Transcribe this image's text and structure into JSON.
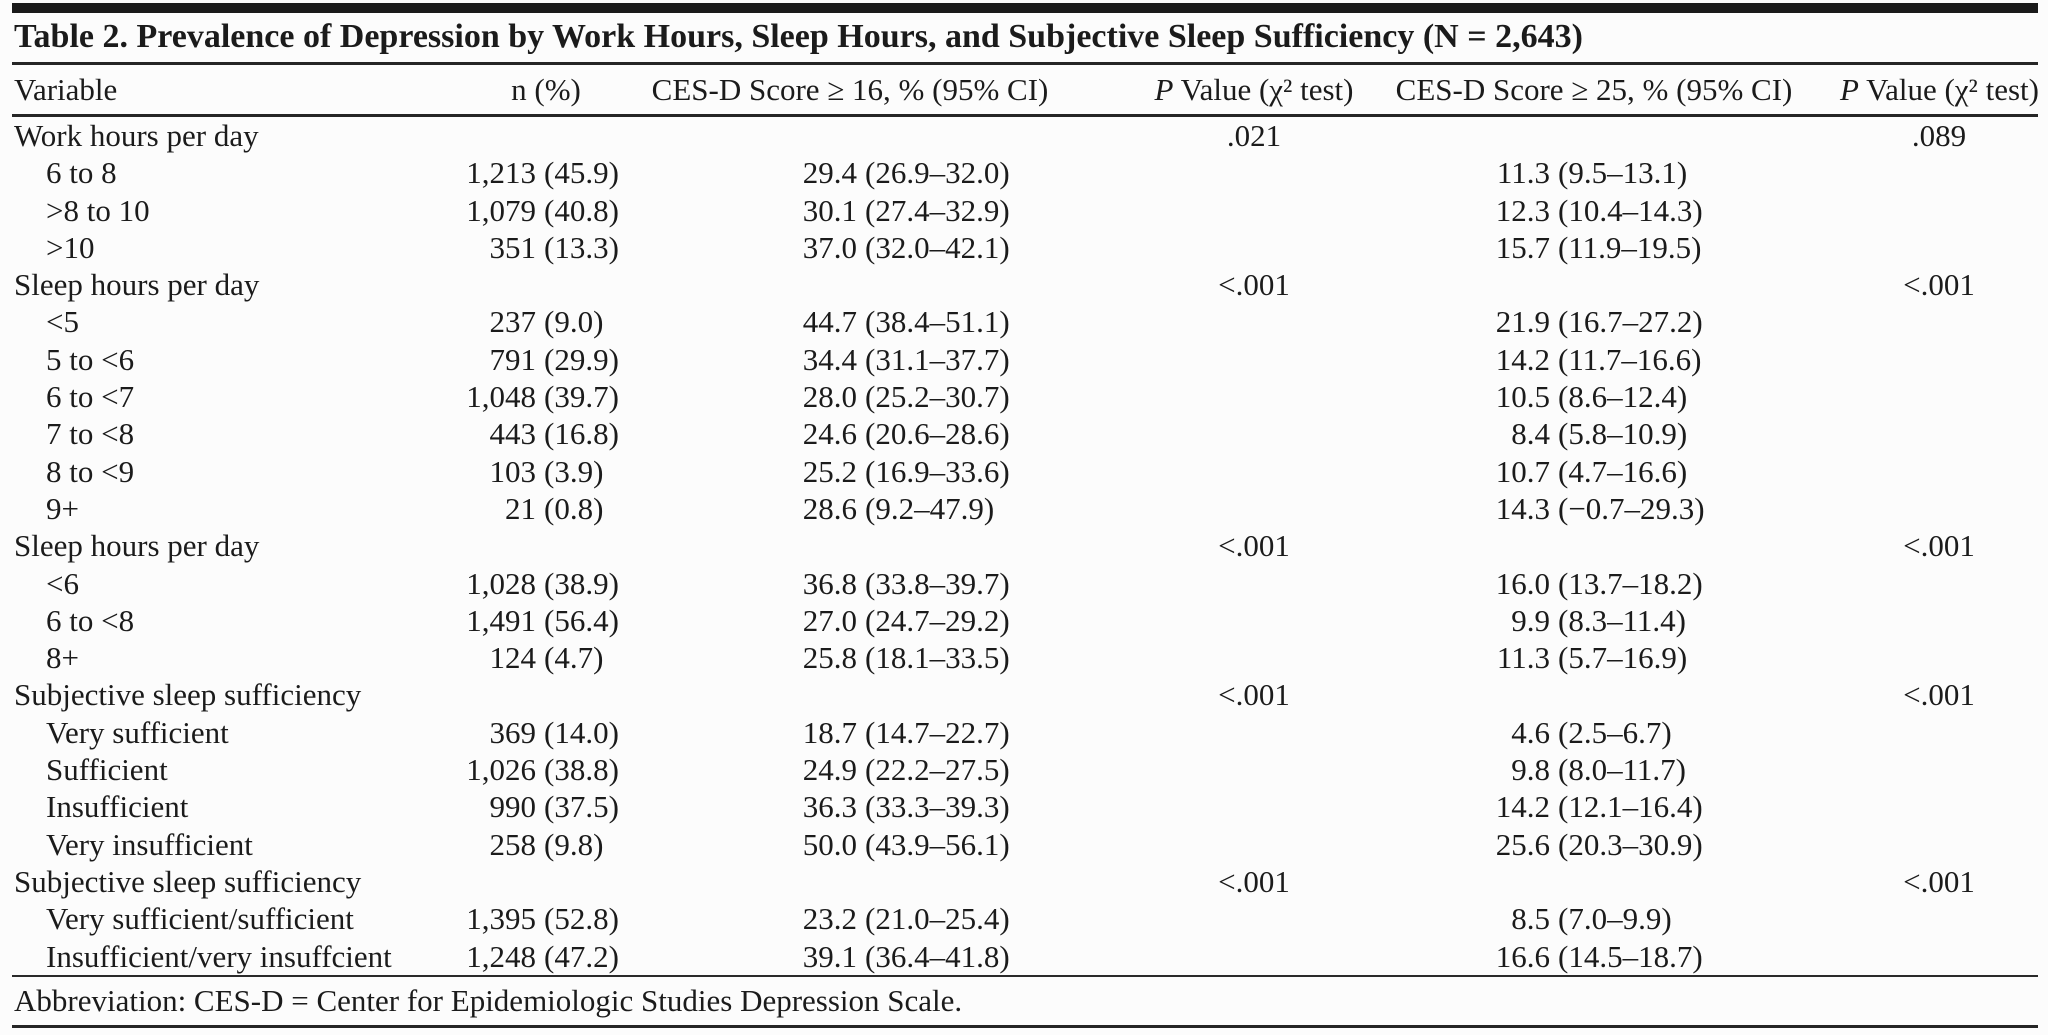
{
  "table": {
    "title": "Table 2. Prevalence of Depression by Work Hours, Sleep Hours, and Subjective Sleep Sufficiency (N = 2,643)",
    "columns": {
      "variable": "Variable",
      "n": "n (%)",
      "cesd16": "CES-D Score ≥ 16, % (95% CI)",
      "p1": {
        "p": "P",
        "rest": " Value (χ² test)"
      },
      "cesd25": "CES-D Score ≥ 25, % (95% CI)",
      "p2": {
        "p": "P",
        "rest": " Value (χ² test)"
      }
    },
    "rows": [
      {
        "label": "Work hours per day",
        "indent": false,
        "n": "",
        "n_pct": "",
        "c16": "",
        "c16_ci": "",
        "p16": ".021",
        "c25": "",
        "c25_ci": "",
        "p25": ".089"
      },
      {
        "label": "6 to 8",
        "indent": true,
        "n": "1,213",
        "n_pct": "(45.9)",
        "c16": "29.4",
        "c16_ci": "(26.9–32.0)",
        "p16": "",
        "c25": "11.3",
        "c25_ci": "(9.5–13.1)",
        "p25": ""
      },
      {
        "label": ">8 to 10",
        "indent": true,
        "n": "1,079",
        "n_pct": "(40.8)",
        "c16": "30.1",
        "c16_ci": "(27.4–32.9)",
        "p16": "",
        "c25": "12.3",
        "c25_ci": "(10.4–14.3)",
        "p25": ""
      },
      {
        "label": ">10",
        "indent": true,
        "n": "351",
        "n_pct": "(13.3)",
        "c16": "37.0",
        "c16_ci": "(32.0–42.1)",
        "p16": "",
        "c25": "15.7",
        "c25_ci": "(11.9–19.5)",
        "p25": ""
      },
      {
        "label": "Sleep hours per day",
        "indent": false,
        "n": "",
        "n_pct": "",
        "c16": "",
        "c16_ci": "",
        "p16": "<.001",
        "c25": "",
        "c25_ci": "",
        "p25": "<.001"
      },
      {
        "label": "<5",
        "indent": true,
        "n": "237",
        "n_pct": "(9.0)",
        "c16": "44.7",
        "c16_ci": "(38.4–51.1)",
        "p16": "",
        "c25": "21.9",
        "c25_ci": "(16.7–27.2)",
        "p25": ""
      },
      {
        "label": "5 to <6",
        "indent": true,
        "n": "791",
        "n_pct": "(29.9)",
        "c16": "34.4",
        "c16_ci": "(31.1–37.7)",
        "p16": "",
        "c25": "14.2",
        "c25_ci": "(11.7–16.6)",
        "p25": ""
      },
      {
        "label": "6 to <7",
        "indent": true,
        "n": "1,048",
        "n_pct": "(39.7)",
        "c16": "28.0",
        "c16_ci": "(25.2–30.7)",
        "p16": "",
        "c25": "10.5",
        "c25_ci": "(8.6–12.4)",
        "p25": ""
      },
      {
        "label": "7 to <8",
        "indent": true,
        "n": "443",
        "n_pct": "(16.8)",
        "c16": "24.6",
        "c16_ci": "(20.6–28.6)",
        "p16": "",
        "c25": "8.4",
        "c25_ci": "(5.8–10.9)",
        "p25": ""
      },
      {
        "label": "8 to <9",
        "indent": true,
        "n": "103",
        "n_pct": "(3.9)",
        "c16": "25.2",
        "c16_ci": "(16.9–33.6)",
        "p16": "",
        "c25": "10.7",
        "c25_ci": "(4.7–16.6)",
        "p25": ""
      },
      {
        "label": "9+",
        "indent": true,
        "n": "21",
        "n_pct": "(0.8)",
        "c16": "28.6",
        "c16_ci": "(9.2–47.9)",
        "p16": "",
        "c25": "14.3",
        "c25_ci": "(−0.7–29.3)",
        "p25": ""
      },
      {
        "label": "Sleep hours per day",
        "indent": false,
        "n": "",
        "n_pct": "",
        "c16": "",
        "c16_ci": "",
        "p16": "<.001",
        "c25": "",
        "c25_ci": "",
        "p25": "<.001"
      },
      {
        "label": "<6",
        "indent": true,
        "n": "1,028",
        "n_pct": "(38.9)",
        "c16": "36.8",
        "c16_ci": "(33.8–39.7)",
        "p16": "",
        "c25": "16.0",
        "c25_ci": "(13.7–18.2)",
        "p25": ""
      },
      {
        "label": "6 to <8",
        "indent": true,
        "n": "1,491",
        "n_pct": "(56.4)",
        "c16": "27.0",
        "c16_ci": "(24.7–29.2)",
        "p16": "",
        "c25": "9.9",
        "c25_ci": "(8.3–11.4)",
        "p25": ""
      },
      {
        "label": "8+",
        "indent": true,
        "n": "124",
        "n_pct": "(4.7)",
        "c16": "25.8",
        "c16_ci": "(18.1–33.5)",
        "p16": "",
        "c25": "11.3",
        "c25_ci": "(5.7–16.9)",
        "p25": ""
      },
      {
        "label": "Subjective sleep sufficiency",
        "indent": false,
        "n": "",
        "n_pct": "",
        "c16": "",
        "c16_ci": "",
        "p16": "<.001",
        "c25": "",
        "c25_ci": "",
        "p25": "<.001"
      },
      {
        "label": "Very sufficient",
        "indent": true,
        "n": "369",
        "n_pct": "(14.0)",
        "c16": "18.7",
        "c16_ci": "(14.7–22.7)",
        "p16": "",
        "c25": "4.6",
        "c25_ci": "(2.5–6.7)",
        "p25": ""
      },
      {
        "label": "Sufficient",
        "indent": true,
        "n": "1,026",
        "n_pct": "(38.8)",
        "c16": "24.9",
        "c16_ci": "(22.2–27.5)",
        "p16": "",
        "c25": "9.8",
        "c25_ci": "(8.0–11.7)",
        "p25": ""
      },
      {
        "label": "Insufficient",
        "indent": true,
        "n": "990",
        "n_pct": "(37.5)",
        "c16": "36.3",
        "c16_ci": "(33.3–39.3)",
        "p16": "",
        "c25": "14.2",
        "c25_ci": "(12.1–16.4)",
        "p25": ""
      },
      {
        "label": "Very insufficient",
        "indent": true,
        "n": "258",
        "n_pct": "(9.8)",
        "c16": "50.0",
        "c16_ci": "(43.9–56.1)",
        "p16": "",
        "c25": "25.6",
        "c25_ci": "(20.3–30.9)",
        "p25": ""
      },
      {
        "label": "Subjective sleep sufficiency",
        "indent": false,
        "n": "",
        "n_pct": "",
        "c16": "",
        "c16_ci": "",
        "p16": "<.001",
        "c25": "",
        "c25_ci": "",
        "p25": "<.001"
      },
      {
        "label": "Very sufficient/sufficient",
        "indent": true,
        "n": "1,395",
        "n_pct": "(52.8)",
        "c16": "23.2",
        "c16_ci": "(21.0–25.4)",
        "p16": "",
        "c25": "8.5",
        "c25_ci": "(7.0–9.9)",
        "p25": ""
      },
      {
        "label": "Insufficient/very insuffcient",
        "indent": true,
        "n": "1,248",
        "n_pct": "(47.2)",
        "c16": "39.1",
        "c16_ci": "(36.4–41.8)",
        "p16": "",
        "c25": "16.6",
        "c25_ci": "(14.5–18.7)",
        "p25": ""
      }
    ],
    "footnote": "Abbreviation: CES-D = Center for Epidemiologic Studies Depression Scale."
  },
  "colors": {
    "background": "#fcfcfc",
    "text": "#1b1b1b",
    "rule": "#262626"
  }
}
